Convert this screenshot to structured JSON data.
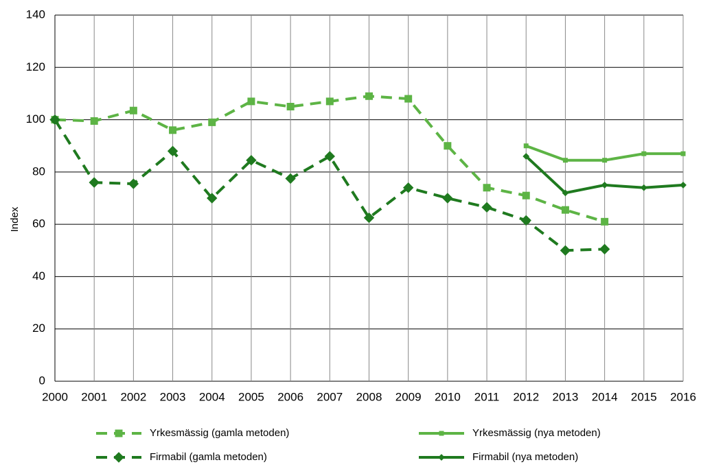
{
  "chart_data": {
    "type": "line",
    "x": [
      2000,
      2001,
      2002,
      2003,
      2004,
      2005,
      2006,
      2007,
      2008,
      2009,
      2010,
      2011,
      2012,
      2013,
      2014,
      2015,
      2016
    ],
    "xlim": [
      2000,
      2016
    ],
    "xticks": [
      2000,
      2001,
      2002,
      2003,
      2004,
      2005,
      2006,
      2007,
      2008,
      2009,
      2010,
      2011,
      2012,
      2013,
      2014,
      2015,
      2016
    ],
    "ylim": [
      0,
      140
    ],
    "yticks": [
      0,
      20,
      40,
      60,
      80,
      100,
      120,
      140
    ],
    "ylabel": "Index",
    "grid": true,
    "legend": "bottom",
    "series": [
      {
        "name": "Yrkesmässig (gamla metoden)",
        "color": "#5db445",
        "dashed": true,
        "marker": "square",
        "values": [
          100,
          99.5,
          103.5,
          96,
          99,
          107,
          105,
          107,
          109,
          108,
          90,
          74,
          71,
          65.5,
          61,
          null,
          null
        ]
      },
      {
        "name": "Yrkesmässig (nya metoden)",
        "color": "#5db445",
        "dashed": false,
        "marker": "square",
        "values": [
          null,
          null,
          null,
          null,
          null,
          null,
          null,
          null,
          null,
          null,
          null,
          null,
          90,
          84.5,
          84.5,
          87,
          87
        ]
      },
      {
        "name": "Firmabil (gamla metoden)",
        "color": "#1f7a1f",
        "dashed": true,
        "marker": "diamond",
        "values": [
          100,
          76,
          75.5,
          88,
          70,
          84.5,
          77.5,
          86,
          62.5,
          74,
          70,
          66.5,
          61.5,
          50,
          50.5,
          null,
          null
        ]
      },
      {
        "name": "Firmabil (nya metoden)",
        "color": "#1f7a1f",
        "dashed": false,
        "marker": "diamond",
        "values": [
          null,
          null,
          null,
          null,
          null,
          null,
          null,
          null,
          null,
          null,
          null,
          null,
          86,
          72,
          75,
          74,
          75
        ]
      }
    ]
  }
}
